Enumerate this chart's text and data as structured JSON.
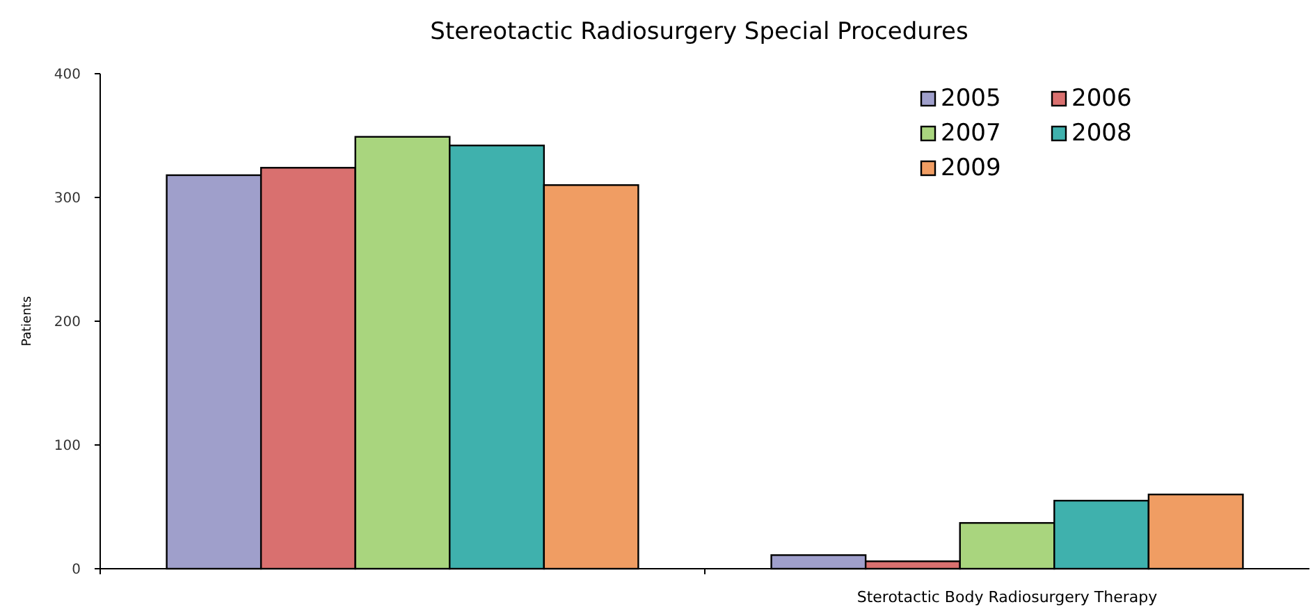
{
  "chart_data": {
    "type": "bar",
    "title": "Stereotactic Radiosurgery Special Procedures",
    "ylabel": "Patients",
    "categories": [
      null,
      "Sterotactic Body Radiosurgery Therapy"
    ],
    "series": [
      {
        "name": "2005",
        "color": "#9f9fcb",
        "values": [
          318,
          11
        ]
      },
      {
        "name": "2006",
        "color": "#d9706f",
        "values": [
          324,
          6
        ]
      },
      {
        "name": "2007",
        "color": "#a9d57e",
        "values": [
          349,
          37
        ]
      },
      {
        "name": "2008",
        "color": "#3fb1ad",
        "values": [
          342,
          55
        ]
      },
      {
        "name": "2009",
        "color": "#f09d63",
        "values": [
          310,
          60
        ]
      }
    ],
    "ylim": [
      0,
      400
    ],
    "yticks": [
      0,
      100,
      200,
      300,
      400
    ],
    "grid": false,
    "legend": "top right"
  }
}
